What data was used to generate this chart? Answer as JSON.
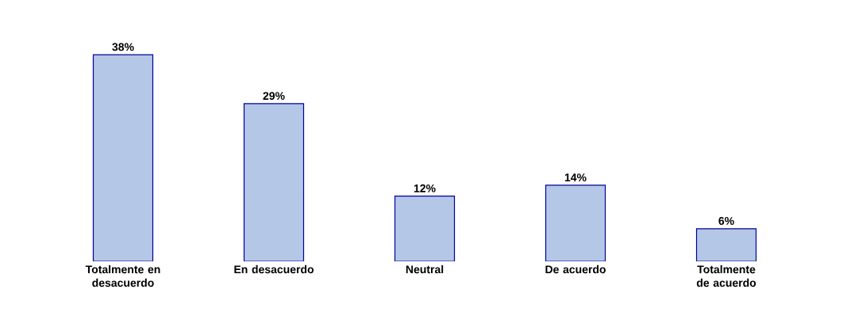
{
  "chart_data": {
    "type": "bar",
    "categories": [
      "Totalmente en desacuerdo",
      "En desacuerdo",
      "Neutral",
      "De acuerdo",
      "Totalmente de acuerdo"
    ],
    "values": [
      38,
      29,
      12,
      14,
      6
    ],
    "value_labels": [
      "38%",
      "29%",
      "12%",
      "14%",
      "6%"
    ],
    "color": "#b4c7e7"
  }
}
